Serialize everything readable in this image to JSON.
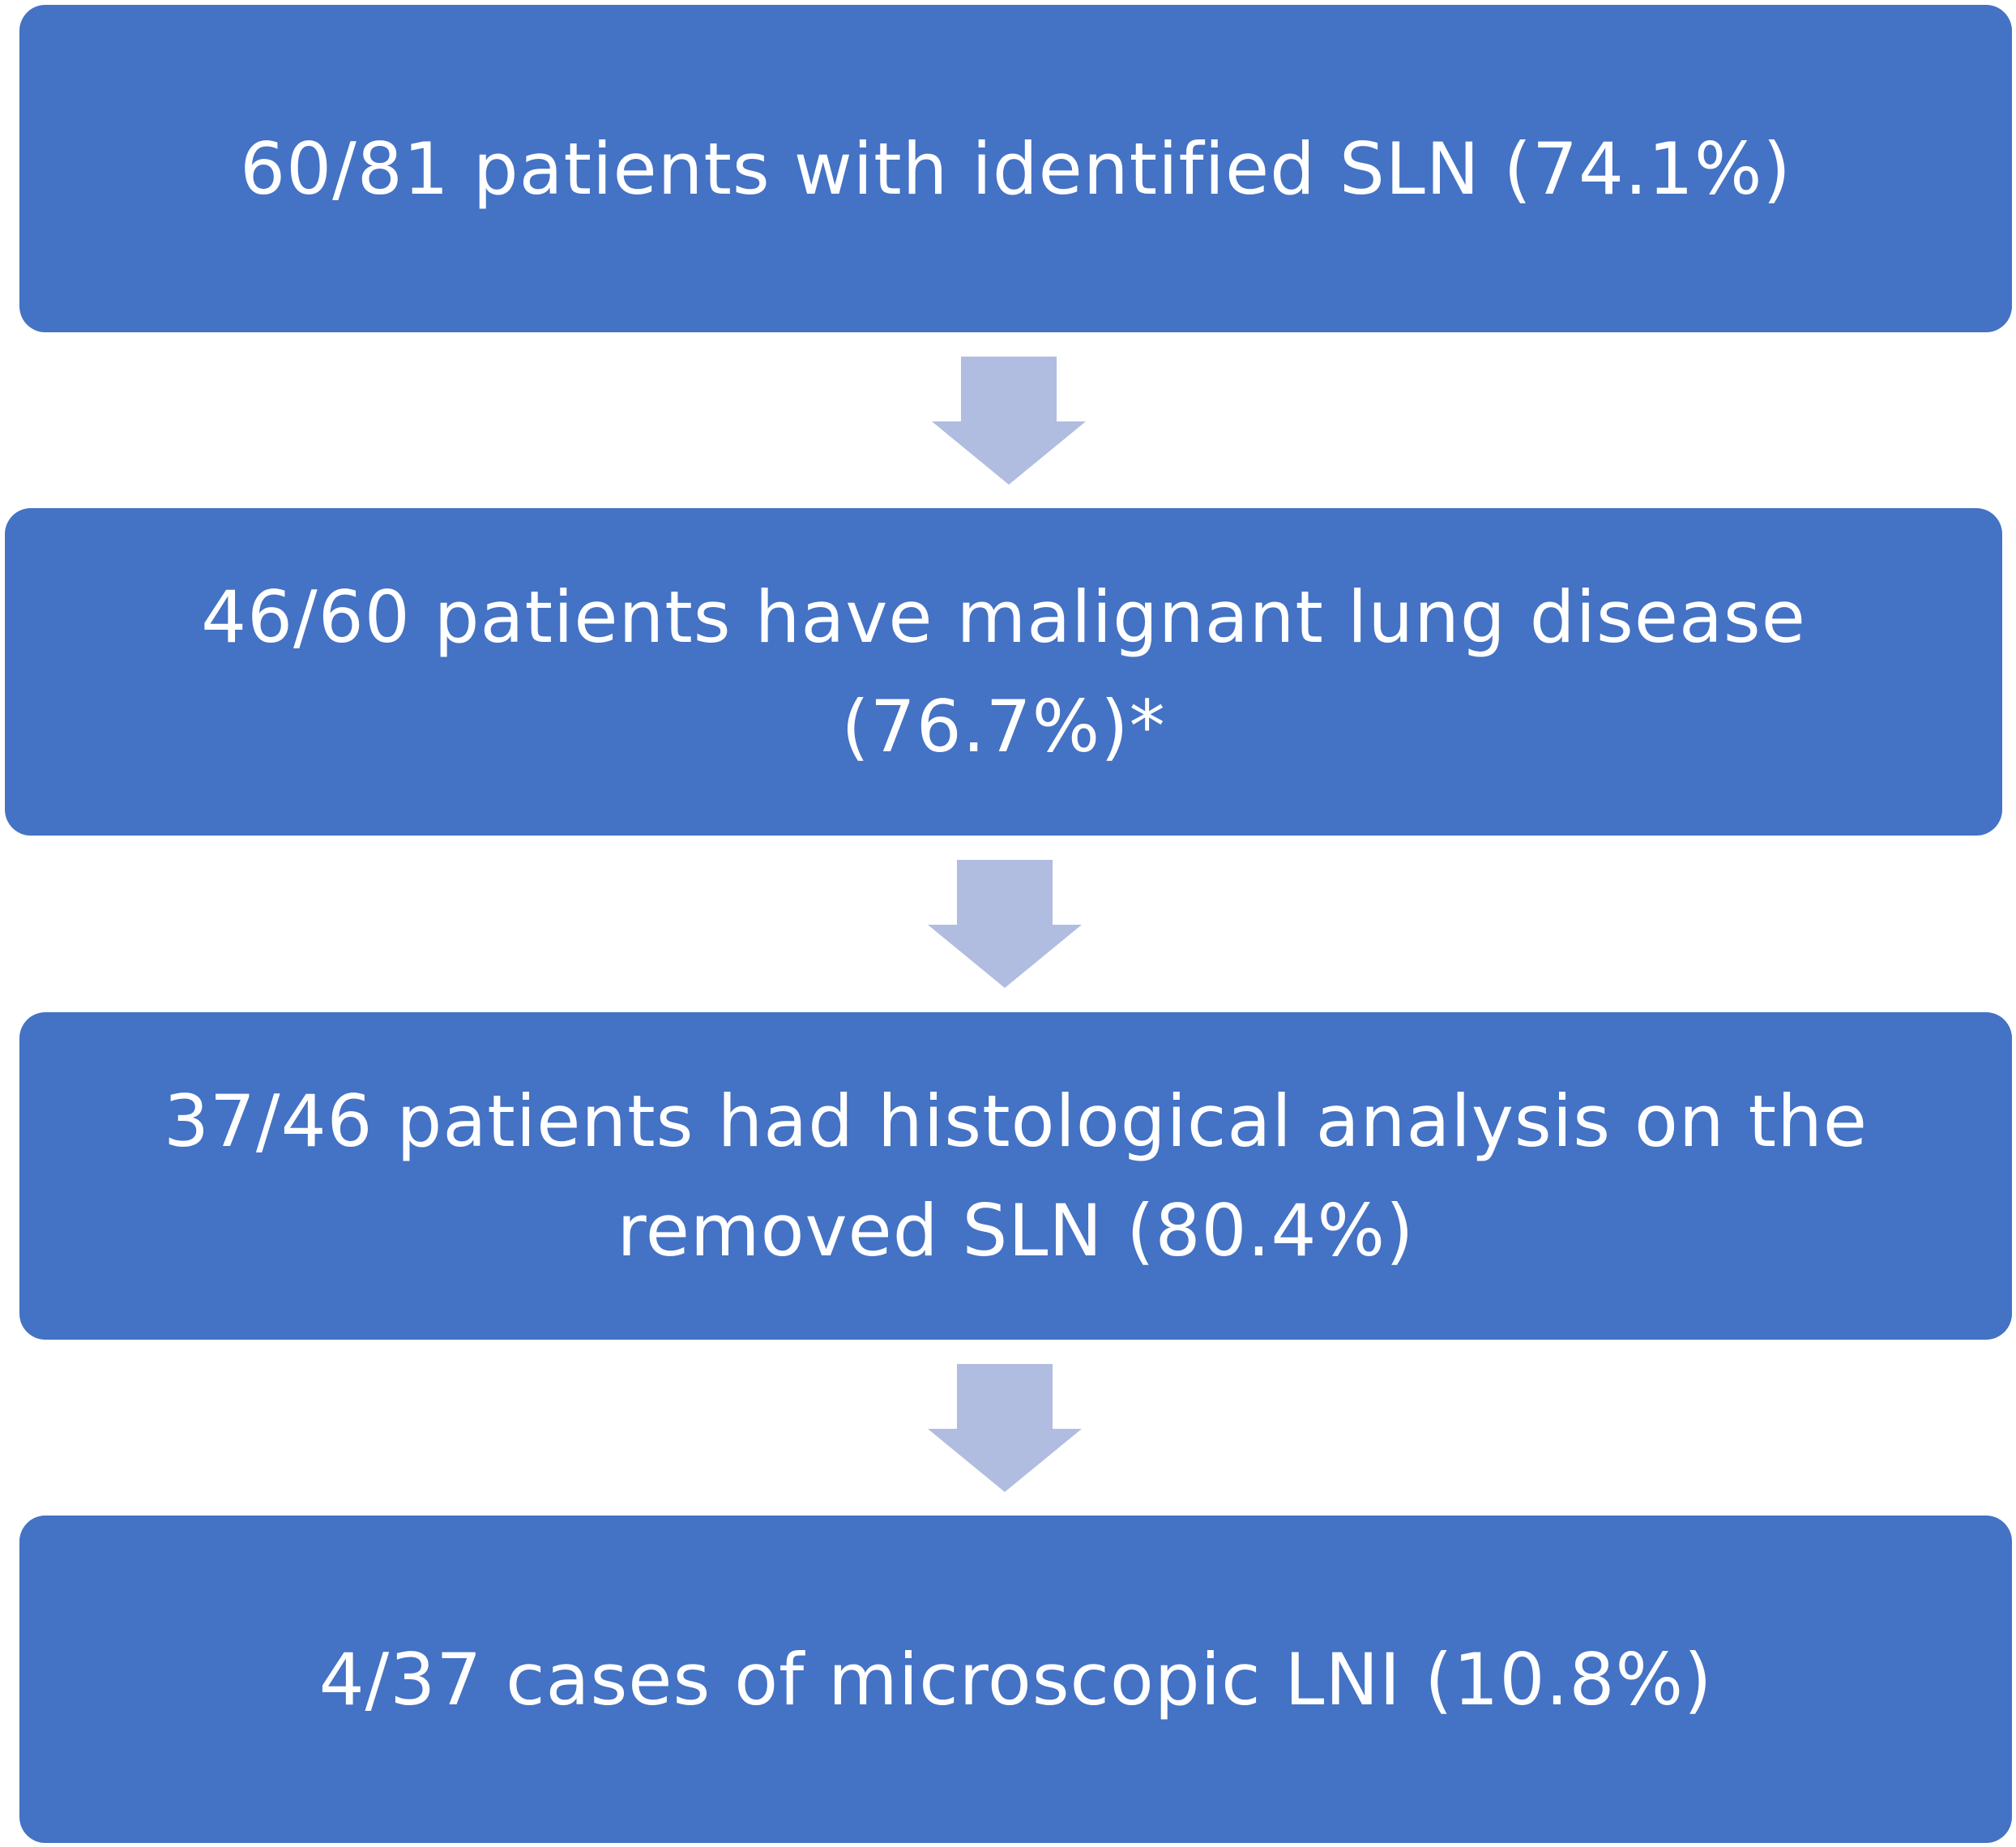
{
  "flowchart": {
    "steps": [
      {
        "text": "60/81 patients with identified SLN (74.1%)"
      },
      {
        "line1": "46/60 patients have malignant lung disease",
        "line2": "(76.7%)*"
      },
      {
        "line1": "37/46 patients had histological analysis on the",
        "line2": "removed SLN (80.4%)"
      },
      {
        "text": "4/37 cases of microscopic LNI (10.8%)"
      }
    ]
  },
  "colors": {
    "box_fill": "#4472c4",
    "box_text": "#ffffff",
    "arrow_fill": "#b0bde0"
  },
  "icons": {
    "connector": "down-arrow-icon"
  }
}
